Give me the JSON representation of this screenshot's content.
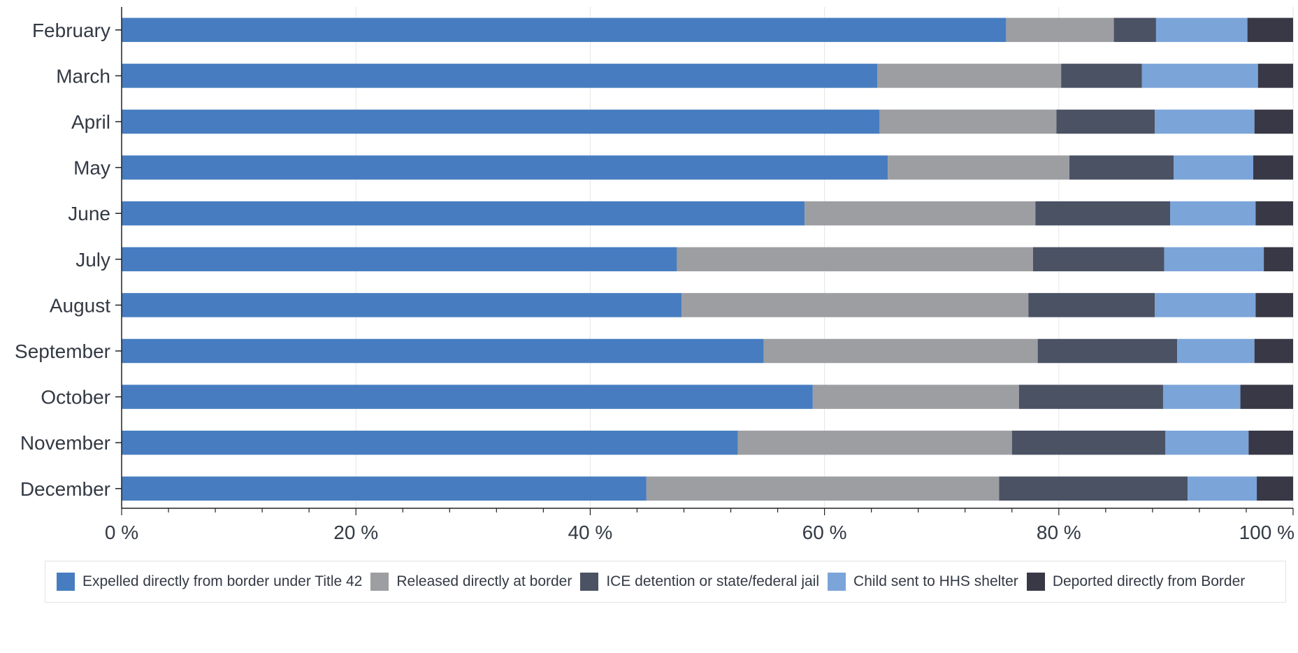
{
  "chart_data": {
    "type": "bar",
    "orientation": "horizontal",
    "stacked": true,
    "categories": [
      "February",
      "March",
      "April",
      "May",
      "June",
      "July",
      "August",
      "September",
      "October",
      "November",
      "December"
    ],
    "series": [
      {
        "name": "Expelled directly from border under Title 42",
        "color": "#477dc0",
        "values": [
          75.5,
          64.5,
          64.7,
          65.4,
          58.3,
          47.4,
          47.8,
          54.8,
          59.0,
          52.6,
          44.8
        ]
      },
      {
        "name": "Released directly at border",
        "color": "#9d9ea2",
        "values": [
          9.2,
          15.7,
          15.1,
          15.5,
          19.7,
          30.4,
          29.6,
          23.4,
          17.6,
          23.4,
          30.1
        ]
      },
      {
        "name": "ICE detention or state/federal jail",
        "color": "#4a5264",
        "values": [
          3.6,
          6.9,
          8.4,
          8.9,
          11.5,
          11.2,
          10.8,
          11.9,
          12.3,
          13.1,
          16.1
        ]
      },
      {
        "name": "Child sent to HHS shelter",
        "color": "#7ba4d9",
        "values": [
          7.8,
          9.9,
          8.5,
          6.8,
          7.3,
          8.5,
          8.6,
          6.6,
          6.6,
          7.1,
          5.9
        ]
      },
      {
        "name": "Deported directly from Border",
        "color": "#383846",
        "values": [
          3.9,
          3.0,
          3.3,
          3.4,
          3.2,
          2.5,
          3.2,
          3.3,
          4.5,
          3.8,
          3.1
        ]
      }
    ],
    "xlim": [
      0,
      100
    ],
    "xticks": [
      "0 %",
      "20 %",
      "40 %",
      "60 %",
      "80 %",
      "100 %"
    ],
    "grid": true,
    "legend_position": "bottom"
  }
}
